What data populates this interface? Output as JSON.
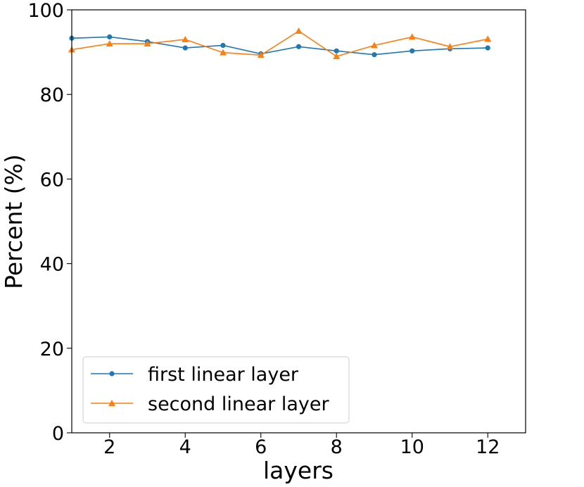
{
  "chart_data": {
    "type": "line",
    "title": "",
    "xlabel": "layers",
    "ylabel": "Percent (%)",
    "xlim": [
      1,
      13
    ],
    "ylim": [
      0,
      100
    ],
    "xticks": [
      2,
      4,
      6,
      8,
      10,
      12
    ],
    "yticks": [
      0,
      20,
      40,
      60,
      80,
      100
    ],
    "grid": false,
    "legend_position": "lower-left",
    "x": [
      1,
      2,
      3,
      4,
      5,
      6,
      7,
      8,
      9,
      10,
      11,
      12
    ],
    "series": [
      {
        "name": "first linear layer",
        "color": "#1f77b4",
        "marker": "circle",
        "values": [
          93.3,
          93.6,
          92.5,
          91.0,
          91.6,
          89.6,
          91.3,
          90.3,
          89.4,
          90.3,
          90.8,
          91.0
        ]
      },
      {
        "name": "second linear layer",
        "color": "#ff7f0e",
        "marker": "triangle",
        "values": [
          90.6,
          92.0,
          92.0,
          93.0,
          89.9,
          89.3,
          95.0,
          89.0,
          91.6,
          93.6,
          91.3,
          93.1
        ]
      }
    ]
  }
}
